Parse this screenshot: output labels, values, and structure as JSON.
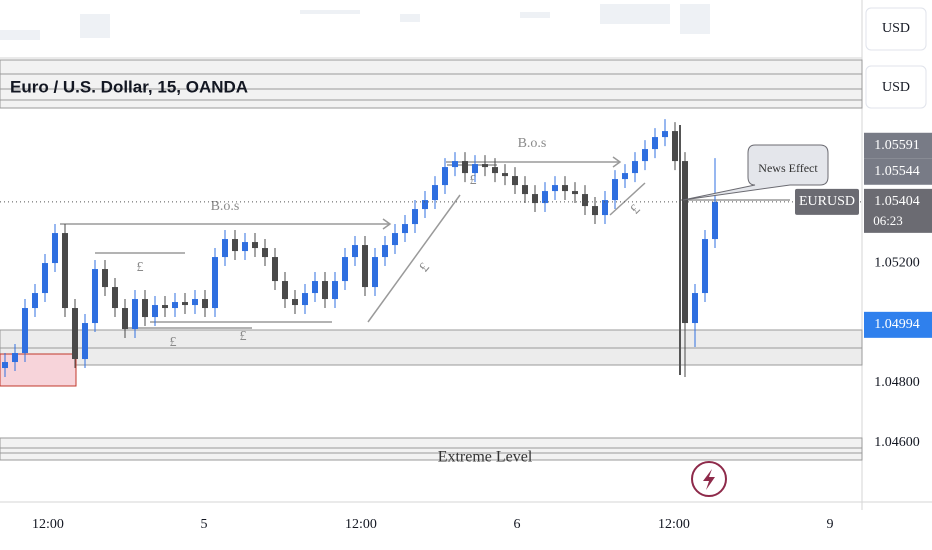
{
  "chart_data": {
    "type": "candlestick",
    "title": "Euro / U.S. Dollar, 15, OANDA",
    "currency": "USD",
    "countdown": "06:23",
    "annotations": [
      "B.o.s",
      "B.o.s",
      "£",
      "£",
      "£",
      "£",
      "£",
      "£",
      "News Effect",
      "Extreme Level"
    ],
    "xlim": [
      -0.5,
      85.7
    ],
    "xticks": [
      {
        "value": 4.3,
        "label": "12:00"
      },
      {
        "value": 19.9,
        "label": "5"
      },
      {
        "value": 35.6,
        "label": "12:00"
      },
      {
        "value": 51.2,
        "label": "6"
      },
      {
        "value": 66.9,
        "label": "12:00"
      },
      {
        "value": 82.5,
        "label": "9"
      }
    ],
    "ylim": [
      1.0441,
      1.06077
    ],
    "yticks": [
      {
        "value": 1.046,
        "label": "1.04600"
      },
      {
        "value": 1.048,
        "label": "1.04800"
      },
      {
        "value": 1.052,
        "label": "1.05200"
      }
    ],
    "price_marks": [
      {
        "value": 1.05591,
        "color": "#787b86"
      },
      {
        "value": 1.05544,
        "color": "#787b86"
      },
      {
        "value": 1.04994,
        "color": "#2f80ed"
      }
    ],
    "last_price_color": "#6b6b72",
    "series": [
      {
        "name": "EURUSD",
        "up_color": "#2f6fe0",
        "down_color": "#4a4a4a",
        "x": [
          0,
          1,
          2,
          3,
          4,
          5,
          6,
          7,
          8,
          9,
          10,
          11,
          12,
          13,
          14,
          15,
          16,
          17,
          18,
          19,
          20,
          21,
          22,
          23,
          24,
          25,
          26,
          27,
          28,
          29,
          30,
          31,
          32,
          33,
          34,
          35,
          36,
          37,
          38,
          39,
          40,
          41,
          42,
          43,
          44,
          45,
          46,
          47,
          48,
          49,
          50,
          51,
          52,
          53,
          54,
          55,
          56,
          57,
          58,
          59,
          60,
          61,
          62,
          63,
          64,
          65,
          66,
          67,
          68,
          69,
          70,
          71
        ],
        "ohlc": [
          [
            1.0485,
            1.049,
            1.0482,
            1.0487
          ],
          [
            1.0487,
            1.0493,
            1.0484,
            1.049
          ],
          [
            1.049,
            1.0508,
            1.0487,
            1.0505
          ],
          [
            1.0505,
            1.0513,
            1.0502,
            1.051
          ],
          [
            1.051,
            1.0523,
            1.0507,
            1.052
          ],
          [
            1.052,
            1.0533,
            1.0517,
            1.053
          ],
          [
            1.053,
            1.0533,
            1.0502,
            1.0505
          ],
          [
            1.0505,
            1.0508,
            1.0485,
            1.0488
          ],
          [
            1.0488,
            1.0503,
            1.0485,
            1.05
          ],
          [
            1.05,
            1.0521,
            1.0497,
            1.0518
          ],
          [
            1.0518,
            1.0521,
            1.0509,
            1.0512
          ],
          [
            1.0512,
            1.0515,
            1.0502,
            1.0505
          ],
          [
            1.0505,
            1.0508,
            1.0495,
            1.0498
          ],
          [
            1.0498,
            1.0511,
            1.0495,
            1.0508
          ],
          [
            1.0508,
            1.0511,
            1.0499,
            1.0502
          ],
          [
            1.0502,
            1.0509,
            1.0499,
            1.0506
          ],
          [
            1.0506,
            1.0509,
            1.0502,
            1.0505
          ],
          [
            1.0505,
            1.051,
            1.0502,
            1.0507
          ],
          [
            1.0507,
            1.051,
            1.0503,
            1.0506
          ],
          [
            1.0506,
            1.0511,
            1.0503,
            1.0508
          ],
          [
            1.0508,
            1.0511,
            1.0502,
            1.0505
          ],
          [
            1.0505,
            1.0525,
            1.0502,
            1.0522
          ],
          [
            1.0522,
            1.0531,
            1.0519,
            1.0528
          ],
          [
            1.0528,
            1.0531,
            1.0521,
            1.0524
          ],
          [
            1.0524,
            1.053,
            1.0521,
            1.0527
          ],
          [
            1.0527,
            1.053,
            1.0522,
            1.0525
          ],
          [
            1.0525,
            1.0528,
            1.0519,
            1.0522
          ],
          [
            1.0522,
            1.0525,
            1.0511,
            1.0514
          ],
          [
            1.0514,
            1.0517,
            1.0505,
            1.0508
          ],
          [
            1.0508,
            1.0511,
            1.0503,
            1.0506
          ],
          [
            1.0506,
            1.0513,
            1.0503,
            1.051
          ],
          [
            1.051,
            1.0517,
            1.0507,
            1.0514
          ],
          [
            1.0514,
            1.0517,
            1.0505,
            1.0508
          ],
          [
            1.0508,
            1.0517,
            1.0505,
            1.0514
          ],
          [
            1.0514,
            1.0525,
            1.0511,
            1.0522
          ],
          [
            1.0522,
            1.0529,
            1.0519,
            1.0526
          ],
          [
            1.0526,
            1.0529,
            1.0509,
            1.0512
          ],
          [
            1.0512,
            1.0525,
            1.0509,
            1.0522
          ],
          [
            1.0522,
            1.0529,
            1.0519,
            1.0526
          ],
          [
            1.0526,
            1.0533,
            1.0523,
            1.053
          ],
          [
            1.053,
            1.0536,
            1.0527,
            1.0533
          ],
          [
            1.0533,
            1.0541,
            1.053,
            1.0538
          ],
          [
            1.0538,
            1.0544,
            1.0535,
            1.0541
          ],
          [
            1.0541,
            1.0549,
            1.0538,
            1.0546
          ],
          [
            1.0546,
            1.0555,
            1.0543,
            1.0552
          ],
          [
            1.0552,
            1.0557,
            1.0549,
            1.0554
          ],
          [
            1.0554,
            1.0557,
            1.0547,
            1.055
          ],
          [
            1.055,
            1.0556,
            1.0547,
            1.0553
          ],
          [
            1.0553,
            1.0556,
            1.0549,
            1.0552
          ],
          [
            1.0552,
            1.0555,
            1.0547,
            1.055
          ],
          [
            1.055,
            1.0553,
            1.0546,
            1.0549
          ],
          [
            1.0549,
            1.0552,
            1.0543,
            1.0546
          ],
          [
            1.0546,
            1.0549,
            1.054,
            1.0543
          ],
          [
            1.0543,
            1.0546,
            1.0537,
            1.054
          ],
          [
            1.054,
            1.0547,
            1.0537,
            1.0544
          ],
          [
            1.0544,
            1.0549,
            1.0541,
            1.0546
          ],
          [
            1.0546,
            1.0549,
            1.0541,
            1.0544
          ],
          [
            1.0544,
            1.0547,
            1.054,
            1.0543
          ],
          [
            1.0543,
            1.0546,
            1.0536,
            1.0539
          ],
          [
            1.0539,
            1.0542,
            1.0533,
            1.0536
          ],
          [
            1.0536,
            1.0544,
            1.0533,
            1.0541
          ],
          [
            1.0541,
            1.0551,
            1.0538,
            1.0548
          ],
          [
            1.0548,
            1.0553,
            1.0545,
            1.055
          ],
          [
            1.055,
            1.0557,
            1.0547,
            1.0554
          ],
          [
            1.0554,
            1.0561,
            1.0551,
            1.0558
          ],
          [
            1.0558,
            1.0565,
            1.0555,
            1.0562
          ],
          [
            1.0562,
            1.0568,
            1.0559,
            1.0564
          ],
          [
            1.0564,
            1.0567,
            1.0551,
            1.0554
          ],
          [
            1.0554,
            1.0557,
            1.0482,
            1.05
          ],
          [
            1.05,
            1.0513,
            1.0492,
            1.051
          ],
          [
            1.051,
            1.0531,
            1.0507,
            1.0528
          ],
          [
            1.0528,
            1.0555,
            1.0525,
            1.05404
          ]
        ]
      }
    ]
  }
}
